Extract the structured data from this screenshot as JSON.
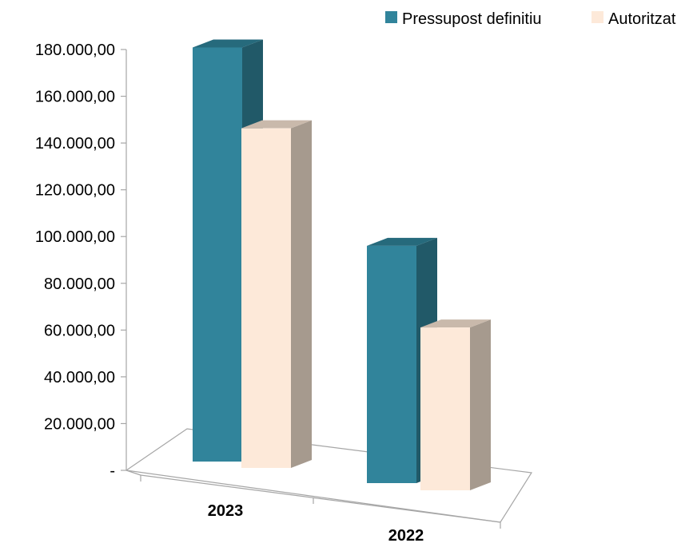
{
  "chart_data": {
    "type": "bar",
    "categories": [
      "2023",
      "2022"
    ],
    "series": [
      {
        "name": "Pressupost definitiu",
        "values": [
          178000,
          102000
        ]
      },
      {
        "name": "Autoritzat",
        "values": [
          146000,
          70000
        ]
      }
    ],
    "y_tick_labels": [
      "-",
      "20.000,00",
      "40.000,00",
      "60.000,00",
      "80.000,00",
      "100.000,00",
      "120.000,00",
      "140.000,00",
      "160.000,00",
      "180.000,00"
    ],
    "ylim": [
      0,
      180000
    ],
    "legend_position": "top-right",
    "grid": false,
    "three_d": true
  },
  "colors": {
    "series1_front": "#31849b",
    "series1_side": "#215968",
    "series1_top": "#266a7c",
    "series2_front": "#fde9d9",
    "series2_side": "#a69a8e",
    "series2_top": "#c9b9ab",
    "axis": "#a6a6a6"
  }
}
